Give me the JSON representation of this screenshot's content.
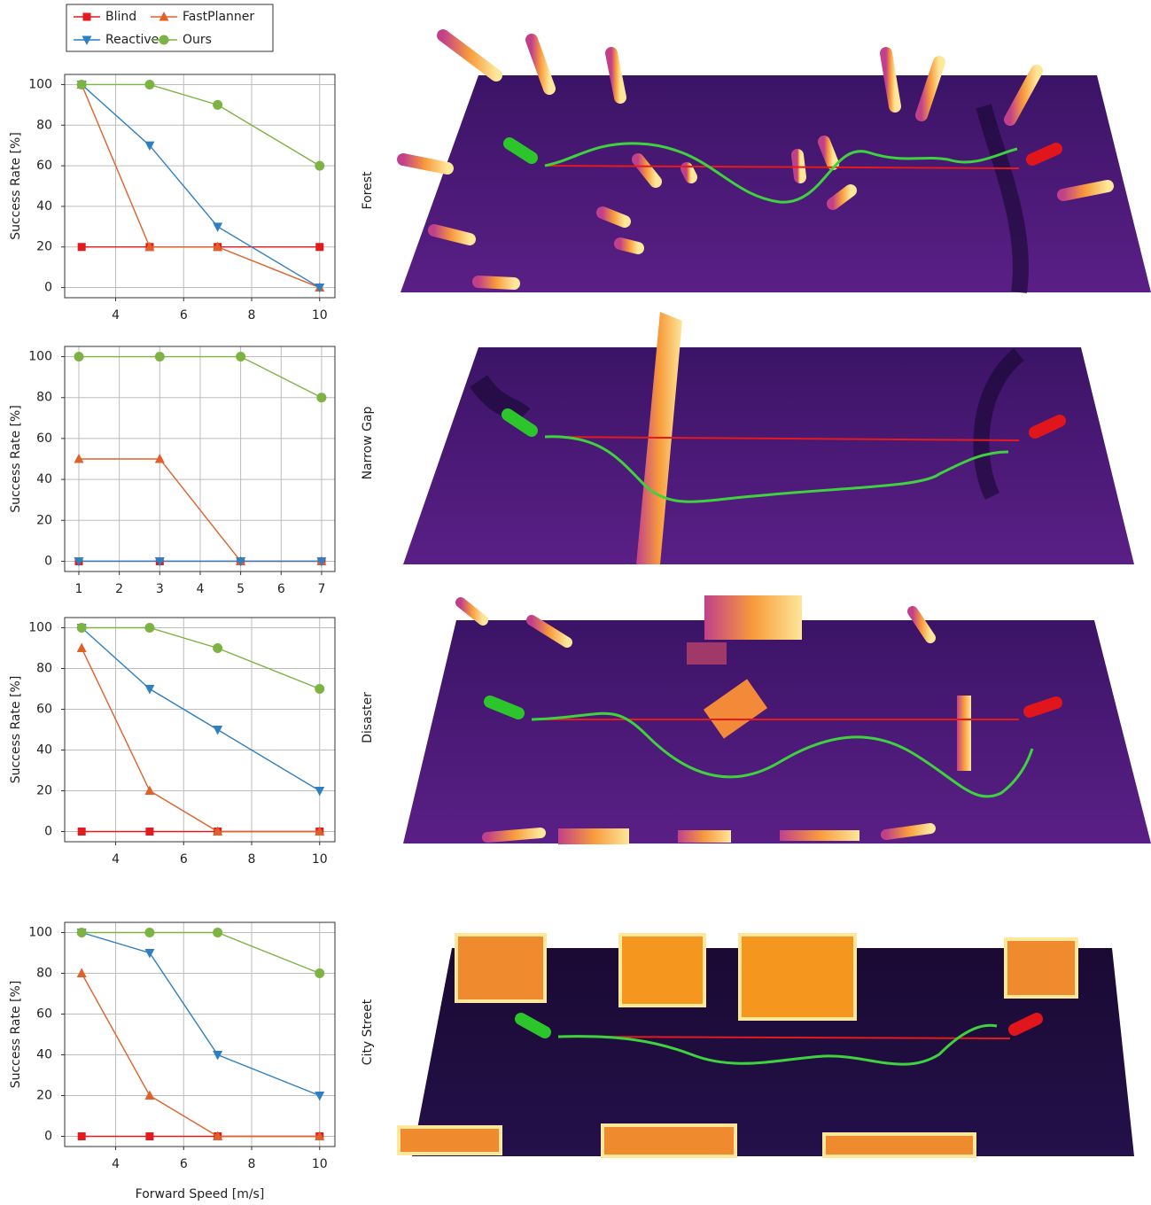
{
  "chart_data": [
    {
      "type": "line",
      "y_label": "Success Rate [%]",
      "legend": true,
      "grid": true,
      "x": [
        3,
        5,
        7,
        10
      ],
      "xlim": [
        2.5,
        10.45
      ],
      "xticks": [
        4,
        6,
        8,
        10
      ],
      "ylim": [
        -5,
        105
      ],
      "yticks": [
        0,
        20,
        40,
        60,
        80,
        100
      ],
      "series": [
        {
          "name": "Blind",
          "color": "#e41a1c",
          "marker": "square",
          "values": [
            20,
            20,
            20,
            20
          ]
        },
        {
          "name": "FastPlanner",
          "color": "#e0602a",
          "marker": "triangle-up",
          "values": [
            100,
            20,
            20,
            0
          ]
        },
        {
          "name": "Reactive",
          "color": "#2f7fc1",
          "marker": "triangle-down",
          "values": [
            100,
            70,
            30,
            0
          ]
        },
        {
          "name": "Ours",
          "color": "#7cb342",
          "marker": "circle",
          "values": [
            100,
            100,
            90,
            60
          ]
        }
      ]
    },
    {
      "type": "line",
      "y_label": "Success Rate [%]",
      "grid": true,
      "x": [
        1,
        3,
        5,
        7
      ],
      "xlim": [
        0.65,
        7.33
      ],
      "xticks": [
        1,
        2,
        3,
        4,
        5,
        6,
        7
      ],
      "ylim": [
        -5,
        105
      ],
      "yticks": [
        0,
        20,
        40,
        60,
        80,
        100
      ],
      "series": [
        {
          "name": "Blind",
          "color": "#e41a1c",
          "marker": "square",
          "values": [
            0,
            0,
            0,
            0
          ]
        },
        {
          "name": "FastPlanner",
          "color": "#e0602a",
          "marker": "triangle-up",
          "values": [
            50,
            50,
            0,
            0
          ]
        },
        {
          "name": "Reactive",
          "color": "#2f7fc1",
          "marker": "triangle-down",
          "values": [
            0,
            0,
            0,
            0
          ]
        },
        {
          "name": "Ours",
          "color": "#7cb342",
          "marker": "circle",
          "values": [
            100,
            100,
            100,
            80
          ]
        }
      ]
    },
    {
      "type": "line",
      "y_label": "Success Rate [%]",
      "grid": true,
      "x": [
        3,
        5,
        7,
        10
      ],
      "xlim": [
        2.5,
        10.45
      ],
      "xticks": [
        4,
        6,
        8,
        10
      ],
      "ylim": [
        -5,
        105
      ],
      "yticks": [
        0,
        20,
        40,
        60,
        80,
        100
      ],
      "series": [
        {
          "name": "Blind",
          "color": "#e41a1c",
          "marker": "square",
          "values": [
            0,
            0,
            0,
            0
          ]
        },
        {
          "name": "FastPlanner",
          "color": "#e0602a",
          "marker": "triangle-up",
          "values": [
            90,
            20,
            0,
            0
          ]
        },
        {
          "name": "Reactive",
          "color": "#2f7fc1",
          "marker": "triangle-down",
          "values": [
            100,
            70,
            50,
            20
          ]
        },
        {
          "name": "Ours",
          "color": "#7cb342",
          "marker": "circle",
          "values": [
            100,
            100,
            90,
            70
          ]
        }
      ]
    },
    {
      "type": "line",
      "y_label": "Success Rate [%]",
      "x_label": "Forward Speed [m/s]",
      "grid": true,
      "x": [
        3,
        5,
        7,
        10
      ],
      "xlim": [
        2.5,
        10.45
      ],
      "xticks": [
        4,
        6,
        8,
        10
      ],
      "ylim": [
        -5,
        105
      ],
      "yticks": [
        0,
        20,
        40,
        60,
        80,
        100
      ],
      "series": [
        {
          "name": "Blind",
          "color": "#e41a1c",
          "marker": "square",
          "values": [
            0,
            0,
            0,
            0
          ]
        },
        {
          "name": "FastPlanner",
          "color": "#e0602a",
          "marker": "triangle-up",
          "values": [
            80,
            20,
            0,
            0
          ]
        },
        {
          "name": "Reactive",
          "color": "#2f7fc1",
          "marker": "triangle-down",
          "values": [
            100,
            90,
            40,
            20
          ]
        },
        {
          "name": "Ours",
          "color": "#7cb342",
          "marker": "circle",
          "values": [
            100,
            100,
            100,
            80
          ]
        }
      ]
    }
  ],
  "scenes": [
    "Forest",
    "Narrow Gap",
    "Disaster",
    "City Street"
  ]
}
